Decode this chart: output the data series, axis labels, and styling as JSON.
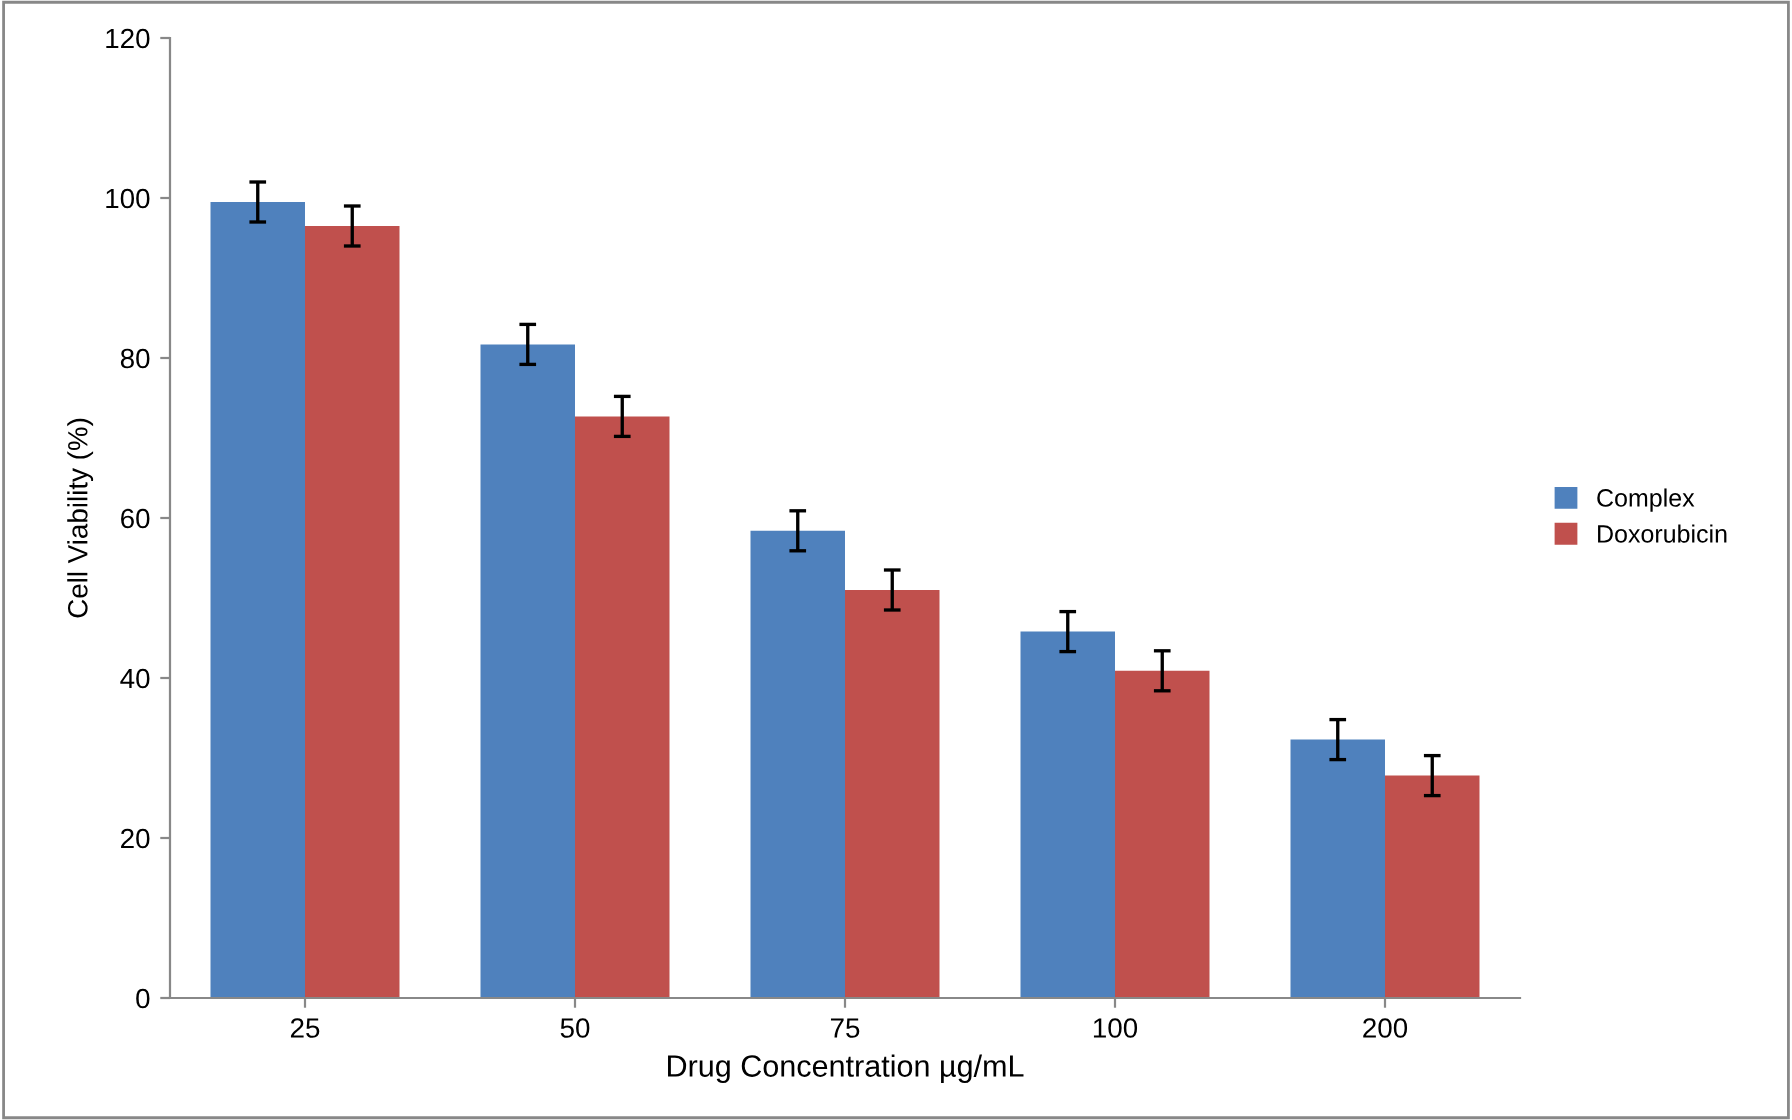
{
  "chart_data": {
    "type": "bar",
    "xlabel": "Drug Concentration µg/mL",
    "ylabel": "Cell Viability (%)",
    "categories": [
      "25",
      "50",
      "75",
      "100",
      "200"
    ],
    "series": [
      {
        "name": "Complex",
        "color": "#4f81bd",
        "values": [
          99.5,
          81.7,
          58.4,
          45.8,
          32.3
        ],
        "errors": [
          2.5,
          2.5,
          2.5,
          2.5,
          2.5
        ]
      },
      {
        "name": "Doxorubicin",
        "color": "#c0504d",
        "values": [
          96.5,
          72.7,
          51,
          40.9,
          27.8
        ],
        "errors": [
          2.5,
          2.5,
          2.5,
          2.5,
          2.5
        ]
      }
    ],
    "ylim": [
      0,
      120
    ],
    "yticks": [
      0,
      20,
      40,
      60,
      80,
      100,
      120
    ],
    "grid": false,
    "legend": "right"
  }
}
